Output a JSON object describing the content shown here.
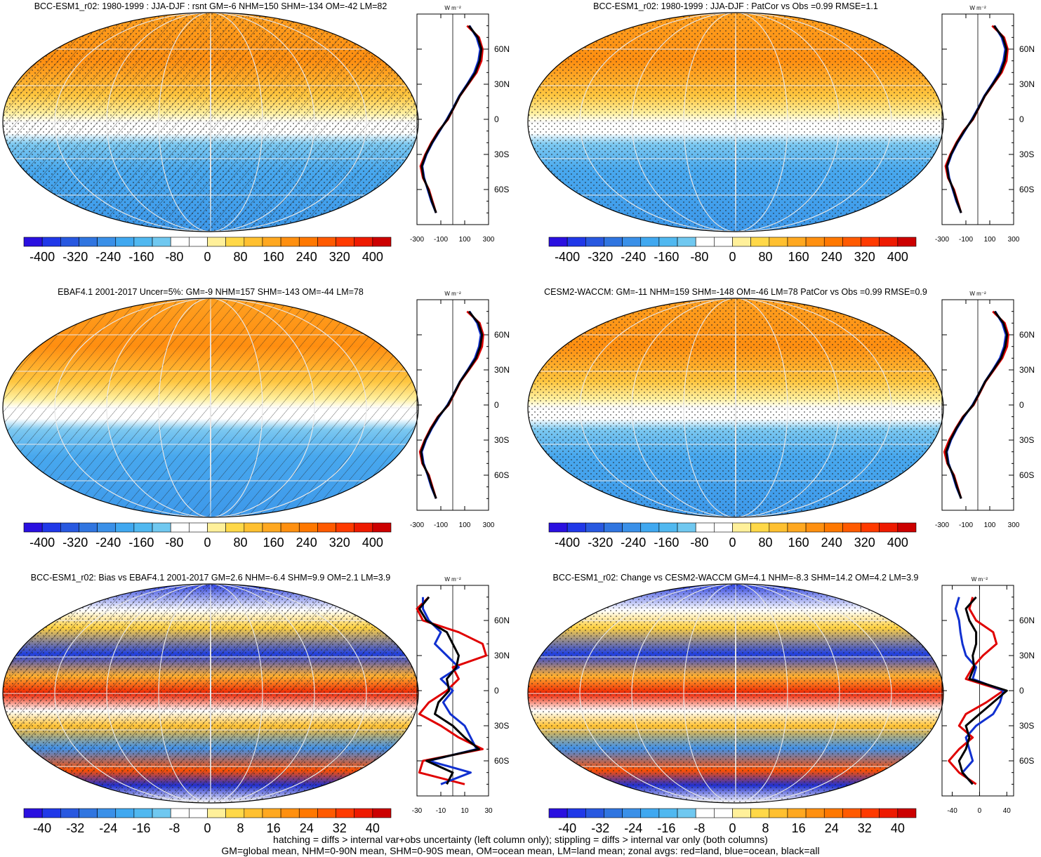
{
  "panels": [
    {
      "id": "p1",
      "title": "BCC-ESM1_r02: 1980-1999 : JJA-DJF : rsnt GM=-6 NHM=150 SHM=-134 OM=-42 LM=82",
      "kind": "mean",
      "hatching": true,
      "stippling": true,
      "colorbar": {
        "labels": [
          "-400",
          "-320",
          "-240",
          "-160",
          "-80",
          "0",
          "80",
          "160",
          "240",
          "320",
          "400"
        ]
      },
      "profile": {
        "unit": "W m⁻²",
        "xticks": [
          "-300",
          "-100",
          "100",
          "300"
        ],
        "xvals": [
          -300,
          -100,
          100,
          300
        ],
        "xlim": [
          -300,
          300
        ],
        "yticks": [
          "60N",
          "30N",
          "0",
          "30S",
          "60S"
        ],
        "series": [
          {
            "color": "#e00000",
            "lat": [
              80,
              70,
              60,
              50,
              40,
              30,
              20,
              10,
              0,
              -10,
              -20,
              -30,
              -40,
              -50,
              -60,
              -70,
              -80
            ],
            "val": [
              120,
              220,
              250,
              240,
              200,
              130,
              60,
              10,
              -40,
              -120,
              -180,
              -230,
              -270,
              -250,
              -200,
              -170,
              -140
            ]
          },
          {
            "color": "#1030d0",
            "lat": [
              80,
              70,
              60,
              50,
              40,
              30,
              20,
              10,
              0,
              -10,
              -20,
              -30,
              -40,
              -50,
              -60,
              -70,
              -80
            ],
            "val": [
              140,
              200,
              230,
              215,
              180,
              120,
              55,
              5,
              -50,
              -110,
              -170,
              -220,
              -255,
              -240,
              -210,
              -180,
              -140
            ]
          },
          {
            "color": "#000000",
            "lat": [
              80,
              70,
              60,
              50,
              40,
              30,
              20,
              10,
              0,
              -10,
              -20,
              -30,
              -40,
              -50,
              -60,
              -70,
              -80
            ],
            "val": [
              135,
              210,
              240,
              225,
              190,
              125,
              58,
              8,
              -45,
              -115,
              -175,
              -225,
              -260,
              -245,
              -205,
              -175,
              -140
            ]
          }
        ]
      }
    },
    {
      "id": "p2",
      "title": "BCC-ESM1_r02: 1980-1999 : JJA-DJF : PatCor vs Obs =0.99 RMSE=1.1",
      "kind": "mean",
      "hatching": false,
      "stippling": true,
      "colorbar": {
        "labels": [
          "-400",
          "-320",
          "-240",
          "-160",
          "-80",
          "0",
          "80",
          "160",
          "240",
          "320",
          "400"
        ]
      },
      "profile": {
        "unit": "W m⁻²",
        "xticks": [
          "-300",
          "-100",
          "100",
          "300"
        ],
        "xvals": [
          -300,
          -100,
          100,
          300
        ],
        "xlim": [
          -300,
          300
        ],
        "yticks": [
          "60N",
          "30N",
          "0",
          "30S",
          "60S"
        ],
        "series": [
          {
            "color": "#e00000",
            "lat": [
              80,
              70,
              60,
              50,
              40,
              30,
              20,
              10,
              0,
              -10,
              -20,
              -30,
              -40,
              -50,
              -60,
              -70,
              -80
            ],
            "val": [
              120,
              220,
              250,
              240,
              200,
              130,
              60,
              10,
              -40,
              -120,
              -180,
              -230,
              -270,
              -250,
              -200,
              -170,
              -140
            ]
          },
          {
            "color": "#1030d0",
            "lat": [
              80,
              70,
              60,
              50,
              40,
              30,
              20,
              10,
              0,
              -10,
              -20,
              -30,
              -40,
              -50,
              -60,
              -70,
              -80
            ],
            "val": [
              140,
              200,
              230,
              215,
              180,
              120,
              55,
              5,
              -50,
              -110,
              -170,
              -220,
              -255,
              -240,
              -210,
              -180,
              -140
            ]
          },
          {
            "color": "#000000",
            "lat": [
              80,
              70,
              60,
              50,
              40,
              30,
              20,
              10,
              0,
              -10,
              -20,
              -30,
              -40,
              -50,
              -60,
              -70,
              -80
            ],
            "val": [
              135,
              210,
              240,
              225,
              190,
              125,
              58,
              8,
              -45,
              -115,
              -175,
              -225,
              -260,
              -245,
              -205,
              -175,
              -140
            ]
          }
        ]
      }
    },
    {
      "id": "p3",
      "title": "EBAF4.1 2001-2017 Uncer=5%: GM=-9 NHM=157 SHM=-143 OM=-44 LM=78",
      "kind": "mean",
      "hatching": true,
      "stippling": false,
      "colorbar": {
        "labels": [
          "-400",
          "-320",
          "-240",
          "-160",
          "-80",
          "0",
          "80",
          "160",
          "240",
          "320",
          "400"
        ]
      },
      "profile": {
        "unit": "W m⁻²",
        "xticks": [
          "-300",
          "-100",
          "100",
          "300"
        ],
        "xvals": [
          -300,
          -100,
          100,
          300
        ],
        "xlim": [
          -300,
          300
        ],
        "yticks": [
          "60N",
          "30N",
          "0",
          "30S",
          "60S"
        ],
        "series": [
          {
            "color": "#e00000",
            "lat": [
              80,
              70,
              60,
              50,
              40,
              30,
              20,
              10,
              0,
              -10,
              -20,
              -30,
              -40,
              -50,
              -60,
              -70,
              -80
            ],
            "val": [
              120,
              225,
              255,
              245,
              205,
              135,
              65,
              15,
              -35,
              -125,
              -185,
              -235,
              -275,
              -255,
              -200,
              -170,
              -140
            ]
          },
          {
            "color": "#1030d0",
            "lat": [
              80,
              70,
              60,
              50,
              40,
              30,
              20,
              10,
              0,
              -10,
              -20,
              -30,
              -40,
              -50,
              -60,
              -70,
              -80
            ],
            "val": [
              140,
              205,
              235,
              220,
              185,
              125,
              60,
              10,
              -45,
              -115,
              -175,
              -225,
              -260,
              -245,
              -210,
              -180,
              -140
            ]
          },
          {
            "color": "#000000",
            "lat": [
              80,
              70,
              60,
              50,
              40,
              30,
              20,
              10,
              0,
              -10,
              -20,
              -30,
              -40,
              -50,
              -60,
              -70,
              -80
            ],
            "val": [
              135,
              215,
              245,
              230,
              195,
              130,
              62,
              12,
              -40,
              -120,
              -180,
              -230,
              -265,
              -250,
              -205,
              -175,
              -140
            ]
          }
        ]
      }
    },
    {
      "id": "p4",
      "title": "CESM2-WACCM: GM=-11 NHM=159 SHM=-148 OM=-46 LM=78 PatCor vs Obs =0.99 RMSE=0.9",
      "kind": "mean",
      "hatching": false,
      "stippling": true,
      "colorbar": {
        "labels": [
          "-400",
          "-320",
          "-240",
          "-160",
          "-80",
          "0",
          "80",
          "160",
          "240",
          "320",
          "400"
        ]
      },
      "profile": {
        "unit": "W m⁻²",
        "xticks": [
          "-300",
          "-100",
          "100",
          "300"
        ],
        "xvals": [
          -300,
          -100,
          100,
          300
        ],
        "xlim": [
          -300,
          300
        ],
        "yticks": [
          "60N",
          "30N",
          "0",
          "30S",
          "60S"
        ],
        "series": [
          {
            "color": "#e00000",
            "lat": [
              80,
              70,
              60,
              50,
              40,
              30,
              20,
              10,
              0,
              -10,
              -20,
              -30,
              -40,
              -50,
              -60,
              -70,
              -80
            ],
            "val": [
              125,
              225,
              255,
              245,
              205,
              135,
              65,
              15,
              -35,
              -125,
              -185,
              -240,
              -280,
              -255,
              -200,
              -170,
              -140
            ]
          },
          {
            "color": "#1030d0",
            "lat": [
              80,
              70,
              60,
              50,
              40,
              30,
              20,
              10,
              0,
              -10,
              -20,
              -30,
              -40,
              -50,
              -60,
              -70,
              -80
            ],
            "val": [
              145,
              205,
              235,
              220,
              185,
              125,
              60,
              10,
              -45,
              -115,
              -175,
              -225,
              -260,
              -245,
              -210,
              -180,
              -140
            ]
          },
          {
            "color": "#000000",
            "lat": [
              80,
              70,
              60,
              50,
              40,
              30,
              20,
              10,
              0,
              -10,
              -20,
              -30,
              -40,
              -50,
              -60,
              -70,
              -80
            ],
            "val": [
              140,
              215,
              245,
              230,
              195,
              130,
              62,
              12,
              -40,
              -120,
              -180,
              -230,
              -265,
              -250,
              -205,
              -175,
              -140
            ]
          }
        ]
      }
    },
    {
      "id": "p5",
      "title": "BCC-ESM1_r02: Bias vs EBAF4.1 2001-2017 GM=2.6 NHM=-6.4 SHM=9.9 OM=2.1 LM=3.9",
      "kind": "diff",
      "hatching": true,
      "stippling": true,
      "colorbar": {
        "labels": [
          "-40",
          "-32",
          "-24",
          "-16",
          "-8",
          "0",
          "8",
          "16",
          "24",
          "32",
          "40"
        ]
      },
      "profile": {
        "unit": "W m⁻²",
        "xticks": [
          "-30",
          "-10",
          "10",
          "30"
        ],
        "xvals": [
          -30,
          -10,
          10,
          30
        ],
        "xlim": [
          -30,
          30
        ],
        "yticks": [
          "60N",
          "30N",
          "0",
          "30S",
          "60S"
        ],
        "series": [
          {
            "color": "#e00000",
            "lat": [
              80,
              70,
              60,
              50,
              40,
              30,
              20,
              10,
              0,
              -10,
              -20,
              -30,
              -40,
              -50,
              -60,
              -70,
              -80
            ],
            "val": [
              -20,
              -30,
              -25,
              5,
              25,
              28,
              0,
              5,
              -5,
              -20,
              -28,
              -10,
              5,
              25,
              -25,
              -28,
              10
            ]
          },
          {
            "color": "#1030d0",
            "lat": [
              80,
              70,
              60,
              50,
              40,
              30,
              20,
              10,
              0,
              -10,
              -20,
              -30,
              -40,
              -50,
              -60,
              -70,
              -80
            ],
            "val": [
              -25,
              -25,
              -20,
              -10,
              -15,
              -5,
              5,
              -10,
              0,
              -8,
              -2,
              10,
              15,
              20,
              -20,
              15,
              -10
            ]
          },
          {
            "color": "#000000",
            "lat": [
              80,
              70,
              60,
              50,
              40,
              30,
              20,
              10,
              0,
              -10,
              -20,
              -30,
              -40,
              -50,
              -60,
              -70,
              -80
            ],
            "val": [
              -20,
              -28,
              -22,
              -5,
              0,
              5,
              3,
              -5,
              -3,
              -12,
              -15,
              0,
              10,
              22,
              -22,
              0,
              -5
            ]
          }
        ]
      }
    },
    {
      "id": "p6",
      "title": "BCC-ESM1_r02: Change vs CESM2-WACCM GM=4.1 NHM=-8.3 SHM=14.2 OM=4.2 LM=3.9",
      "kind": "diff",
      "hatching": false,
      "stippling": true,
      "colorbar": {
        "labels": [
          "-40",
          "-32",
          "-24",
          "-16",
          "-8",
          "0",
          "8",
          "16",
          "24",
          "32",
          "40"
        ]
      },
      "profile": {
        "unit": "W m⁻²",
        "xticks": [
          "-40",
          "0",
          "40"
        ],
        "xvals": [
          -40,
          0,
          40
        ],
        "xlim": [
          -55,
          50
        ],
        "yticks": [
          "60N",
          "30N",
          "0",
          "30S",
          "60S"
        ],
        "series": [
          {
            "color": "#e00000",
            "lat": [
              80,
              70,
              60,
              50,
              40,
              30,
              20,
              10,
              0,
              -10,
              -20,
              -30,
              -40,
              -50,
              -60,
              -70,
              -80
            ],
            "val": [
              -10,
              -15,
              -5,
              20,
              25,
              5,
              -10,
              -20,
              35,
              10,
              -20,
              -30,
              -10,
              -30,
              -45,
              -30,
              -5
            ]
          },
          {
            "color": "#1030d0",
            "lat": [
              80,
              70,
              60,
              50,
              40,
              30,
              20,
              10,
              0,
              -10,
              -20,
              -30,
              -40,
              -50,
              -60,
              -70,
              -80
            ],
            "val": [
              -30,
              -35,
              -30,
              -28,
              -25,
              -20,
              -5,
              -10,
              35,
              30,
              20,
              -5,
              -20,
              -15,
              -10,
              -25,
              -10
            ]
          },
          {
            "color": "#000000",
            "lat": [
              80,
              70,
              60,
              50,
              40,
              30,
              20,
              10,
              0,
              -10,
              -20,
              -30,
              -40,
              -50,
              -60,
              -70,
              -80
            ],
            "val": [
              -5,
              -20,
              -15,
              -5,
              -5,
              -10,
              -8,
              -15,
              40,
              20,
              0,
              -20,
              -15,
              -20,
              -30,
              -25,
              -10
            ]
          }
        ]
      }
    }
  ],
  "colors": {
    "scale": [
      "#2a10e0",
      "#2038e8",
      "#2858e0",
      "#3075e0",
      "#3a90e8",
      "#40a8f0",
      "#50b8f0",
      "#70c8f0",
      "#ffffff",
      "#ffffff",
      "#fff09a",
      "#ffd848",
      "#ffc030",
      "#ffa820",
      "#ff9010",
      "#ff7800",
      "#ff5a00",
      "#ff3a00",
      "#ee1a00",
      "#cc0000"
    ]
  },
  "footer": {
    "line1": "hatching = diffs > internal var+obs uncertainty (left column only); stippling = diffs > internal var only (both columns)",
    "line2": "GM=global mean, NHM=0-90N mean, SHM=0-90S mean, OM=ocean mean, LM=land mean; zonal avgs: red=land, blue=ocean, black=all"
  }
}
